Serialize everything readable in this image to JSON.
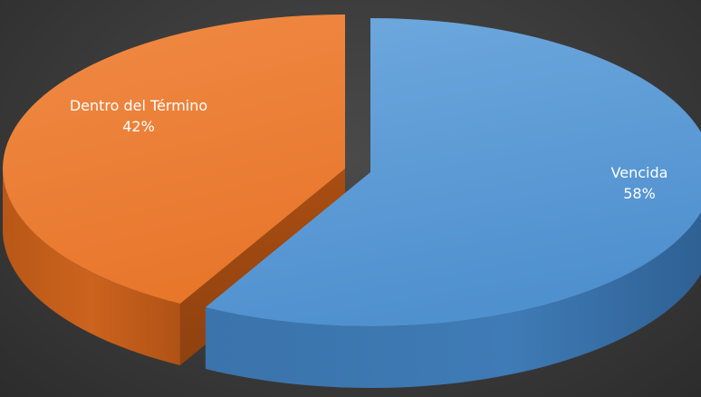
{
  "chart_data": {
    "type": "pie",
    "style": "3d-exploded",
    "title": "",
    "legend": "none",
    "slices": [
      {
        "name": "Vencida",
        "value": 58,
        "label": "58%",
        "color": "#5b9bd5"
      },
      {
        "name": "Dentro del Término",
        "value": 42,
        "label": "42%",
        "color": "#ed7d31"
      }
    ]
  }
}
